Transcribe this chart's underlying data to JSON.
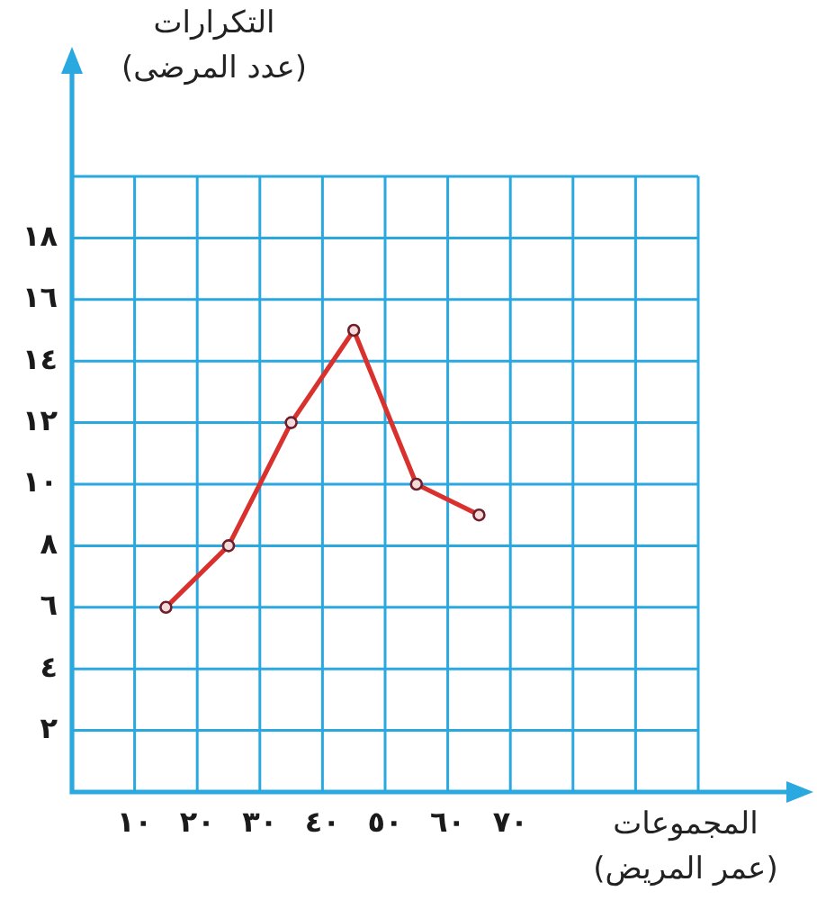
{
  "chart_data": {
    "type": "line",
    "ylabel": "التكرارات\n(عدد المرضى)",
    "xlabel": "المجموعات\n(عمر المريض)",
    "x": [
      15,
      25,
      35,
      45,
      55,
      65
    ],
    "series": [
      {
        "color": "#d8312e",
        "values": [
          6,
          8,
          12,
          15,
          10,
          9
        ]
      }
    ],
    "xlim": [
      0,
      115
    ],
    "xticks": [
      {
        "value": 0,
        "label": null
      },
      {
        "value": 10,
        "label": "١٠"
      },
      {
        "value": 20,
        "label": "٢٠"
      },
      {
        "value": 30,
        "label": "٣٠"
      },
      {
        "value": 40,
        "label": "٤٠"
      },
      {
        "value": 50,
        "label": "٥٠"
      },
      {
        "value": 60,
        "label": "٦٠"
      },
      {
        "value": 70,
        "label": "٧٠"
      },
      {
        "value": 80,
        "label": null
      },
      {
        "value": 90,
        "label": null
      },
      {
        "value": 100,
        "label": null
      }
    ],
    "ylim": [
      0,
      23.5
    ],
    "yticks": [
      {
        "value": 0,
        "label": null
      },
      {
        "value": 2,
        "label": "٢"
      },
      {
        "value": 4,
        "label": "٤"
      },
      {
        "value": 6,
        "label": "٦"
      },
      {
        "value": 8,
        "label": "٨"
      },
      {
        "value": 10,
        "label": "١٠"
      },
      {
        "value": 12,
        "label": "١٢"
      },
      {
        "value": 14,
        "label": "١٤"
      },
      {
        "value": 16,
        "label": "١٦"
      },
      {
        "value": 18,
        "label": "١٨"
      },
      {
        "value": 20,
        "label": null
      }
    ],
    "grid": true,
    "marker": "circle"
  }
}
